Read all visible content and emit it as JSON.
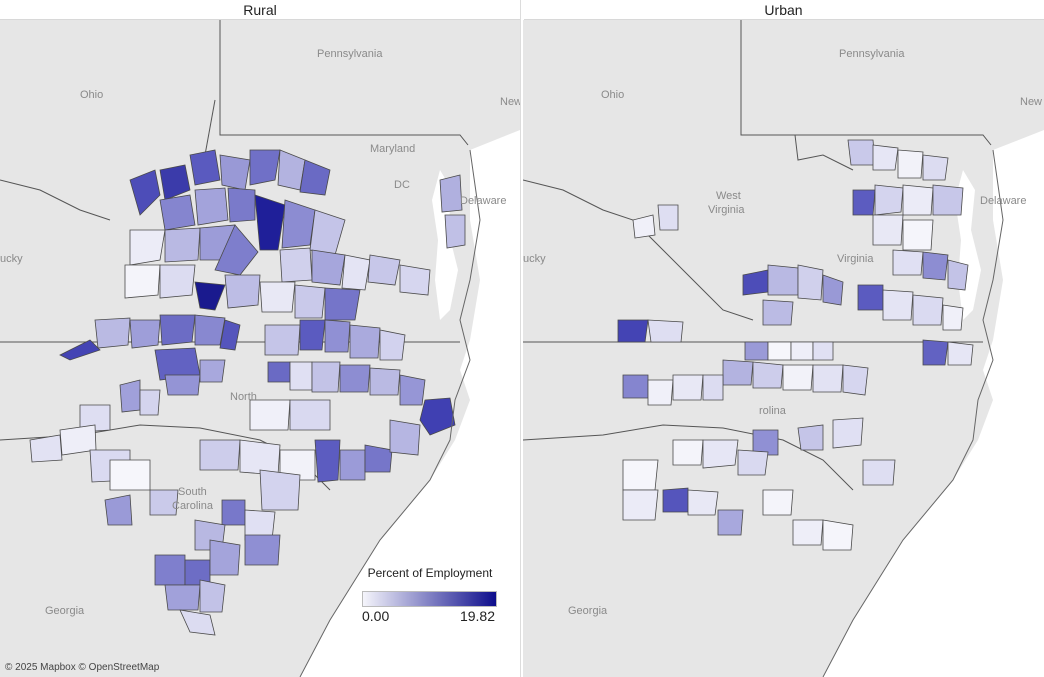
{
  "panels": {
    "left": {
      "title": "Rural"
    },
    "right": {
      "title": "Urban"
    }
  },
  "map_labels": {
    "ohio": "Ohio",
    "pennsylvania": "Pennsylvania",
    "new": "New",
    "maryland": "Maryland",
    "dc": "DC",
    "delaware": "Delaware",
    "west_virginia_1": "West",
    "west_virginia_2": "Virginia",
    "virginia": "Virginia",
    "kentucky": "ucky",
    "north": "North",
    "north_carolina": "rolina",
    "south": "South",
    "carolina": "Carolina",
    "georgia": "Georgia"
  },
  "legend": {
    "title": "Percent of Employment",
    "min": "0.00",
    "max": "19.82",
    "color_min": "#f5f5fb",
    "color_max": "#0d0d8c"
  },
  "attribution": "© 2025 Mapbox © OpenStreetMap",
  "colors": {
    "land": "#e6e6e6",
    "water": "#ffffff",
    "state_border": "#333333",
    "county_stroke": "#4a4a4a"
  }
}
